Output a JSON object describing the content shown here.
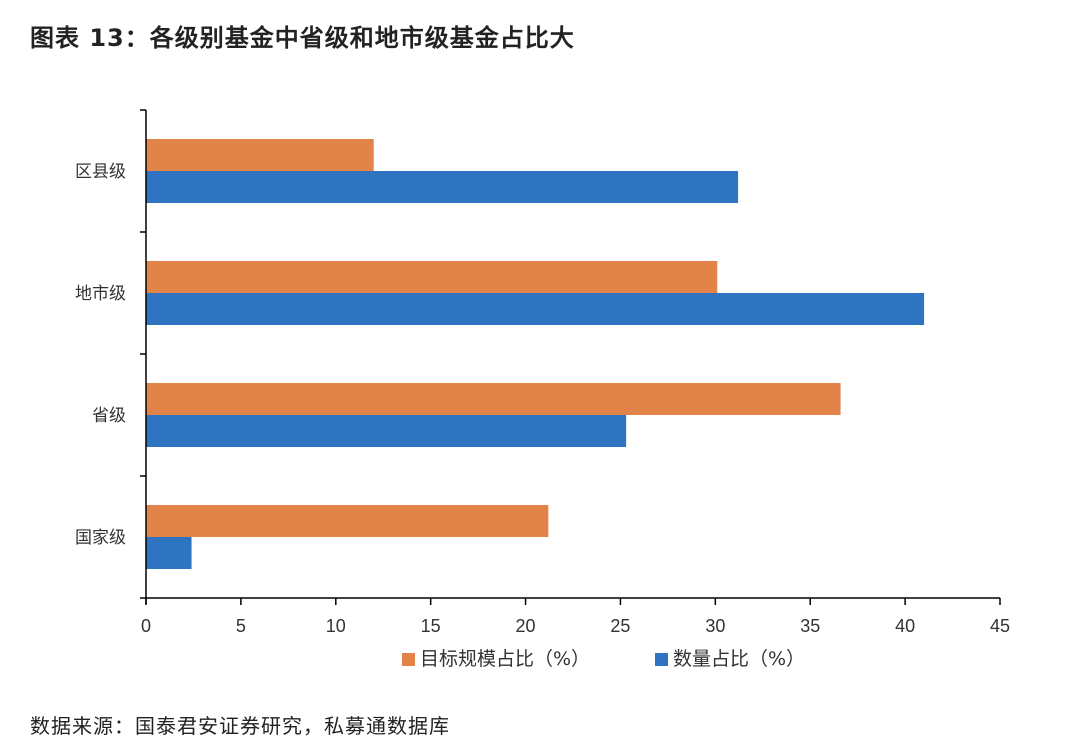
{
  "page": {
    "title": "图表 13：各级别基金中省级和地市级基金占比大",
    "source": "数据来源：国泰君安证券研究，私募通数据库"
  },
  "chart_data": {
    "type": "bar",
    "orientation": "horizontal",
    "title": "图表 13：各级别基金中省级和地市级基金占比大",
    "categories": [
      "国家级",
      "省级",
      "地市级",
      "区县级"
    ],
    "series": [
      {
        "name": "目标规模占比（%）",
        "color": "#E2844A",
        "values": [
          21.2,
          36.6,
          30.1,
          12.0
        ]
      },
      {
        "name": "数量占比（%）",
        "color": "#2F74C0",
        "values": [
          2.4,
          25.3,
          41.0,
          31.2
        ]
      }
    ],
    "xlim": [
      0,
      45
    ],
    "xticks": [
      0,
      5,
      10,
      15,
      20,
      25,
      30,
      35,
      40,
      45
    ],
    "grid": false,
    "legend_position": "bottom"
  }
}
